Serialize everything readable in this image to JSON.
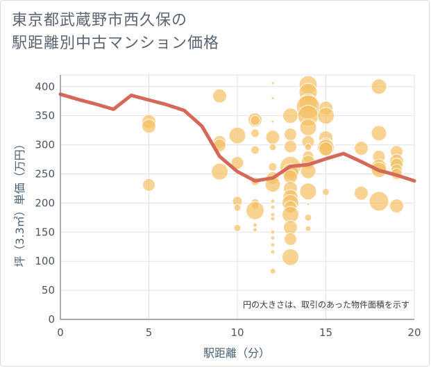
{
  "title_line1": "東京都武蔵野市西久保の",
  "title_line2": "駅距離別中古マンション価格",
  "chart_data": {
    "type": "scatter",
    "title": "東京都武蔵野市西久保の駅距離別中古マンション価格",
    "xlabel": "駅距離（分）",
    "ylabel": "坪（3.3㎡）単価（万円）",
    "xlim": [
      0,
      20
    ],
    "ylim": [
      0,
      420
    ],
    "xticks": [
      0,
      5,
      10,
      15,
      20
    ],
    "yticks": [
      0,
      50,
      100,
      150,
      200,
      250,
      300,
      350,
      400
    ],
    "grid": true,
    "note": "円の大きさは、取引のあった物件面積を示す",
    "bubble_color": "#f5bf62",
    "line_color": "#d4695a",
    "points": [
      {
        "x": 5,
        "y": 340,
        "s": 10
      },
      {
        "x": 5,
        "y": 332,
        "s": 10
      },
      {
        "x": 5,
        "y": 231,
        "s": 9
      },
      {
        "x": 9,
        "y": 384,
        "s": 10
      },
      {
        "x": 9,
        "y": 305,
        "s": 9
      },
      {
        "x": 9,
        "y": 299,
        "s": 9
      },
      {
        "x": 9,
        "y": 254,
        "s": 12
      },
      {
        "x": 10,
        "y": 316,
        "s": 12
      },
      {
        "x": 10,
        "y": 269,
        "s": 9
      },
      {
        "x": 10,
        "y": 203,
        "s": 7
      },
      {
        "x": 10,
        "y": 192,
        "s": 5
      },
      {
        "x": 10,
        "y": 157,
        "s": 5
      },
      {
        "x": 11,
        "y": 343,
        "s": 10
      },
      {
        "x": 11,
        "y": 342,
        "s": 7
      },
      {
        "x": 11,
        "y": 320,
        "s": 6
      },
      {
        "x": 11,
        "y": 291,
        "s": 6
      },
      {
        "x": 11,
        "y": 237,
        "s": 6
      },
      {
        "x": 11,
        "y": 200,
        "s": 6
      },
      {
        "x": 11,
        "y": 195,
        "s": 5
      },
      {
        "x": 11,
        "y": 187,
        "s": 13
      },
      {
        "x": 11,
        "y": 162,
        "s": 3
      },
      {
        "x": 11,
        "y": 154,
        "s": 3
      },
      {
        "x": 12,
        "y": 406,
        "s": 2
      },
      {
        "x": 12,
        "y": 380,
        "s": 2
      },
      {
        "x": 12,
        "y": 340,
        "s": 2
      },
      {
        "x": 12,
        "y": 313,
        "s": 10
      },
      {
        "x": 12,
        "y": 296,
        "s": 5
      },
      {
        "x": 12,
        "y": 262,
        "s": 6
      },
      {
        "x": 12,
        "y": 243,
        "s": 9
      },
      {
        "x": 12,
        "y": 232,
        "s": 11
      },
      {
        "x": 12,
        "y": 203,
        "s": 3
      },
      {
        "x": 12,
        "y": 193,
        "s": 3
      },
      {
        "x": 12,
        "y": 180,
        "s": 3
      },
      {
        "x": 12,
        "y": 173,
        "s": 3
      },
      {
        "x": 12,
        "y": 150,
        "s": 3
      },
      {
        "x": 12,
        "y": 140,
        "s": 3
      },
      {
        "x": 12,
        "y": 128,
        "s": 3
      },
      {
        "x": 12,
        "y": 116,
        "s": 3
      },
      {
        "x": 12,
        "y": 83,
        "s": 4
      },
      {
        "x": 13,
        "y": 350,
        "s": 11
      },
      {
        "x": 13,
        "y": 318,
        "s": 9
      },
      {
        "x": 13,
        "y": 297,
        "s": 9
      },
      {
        "x": 13,
        "y": 262,
        "s": 15
      },
      {
        "x": 13,
        "y": 253,
        "s": 12
      },
      {
        "x": 13,
        "y": 245,
        "s": 10
      },
      {
        "x": 13,
        "y": 225,
        "s": 10
      },
      {
        "x": 13,
        "y": 210,
        "s": 11
      },
      {
        "x": 13,
        "y": 200,
        "s": 12
      },
      {
        "x": 13,
        "y": 193,
        "s": 9
      },
      {
        "x": 13,
        "y": 180,
        "s": 12
      },
      {
        "x": 13,
        "y": 158,
        "s": 10
      },
      {
        "x": 13,
        "y": 138,
        "s": 9
      },
      {
        "x": 13,
        "y": 107,
        "s": 12
      },
      {
        "x": 14,
        "y": 403,
        "s": 13
      },
      {
        "x": 14,
        "y": 390,
        "s": 13
      },
      {
        "x": 14,
        "y": 372,
        "s": 13
      },
      {
        "x": 14,
        "y": 365,
        "s": 17
      },
      {
        "x": 14,
        "y": 350,
        "s": 15
      },
      {
        "x": 14,
        "y": 330,
        "s": 12
      },
      {
        "x": 14,
        "y": 305,
        "s": 9
      },
      {
        "x": 14,
        "y": 296,
        "s": 5
      },
      {
        "x": 14,
        "y": 280,
        "s": 8
      },
      {
        "x": 14,
        "y": 270,
        "s": 10
      },
      {
        "x": 14,
        "y": 255,
        "s": 11
      },
      {
        "x": 14,
        "y": 220,
        "s": 12
      },
      {
        "x": 14,
        "y": 198,
        "s": 2
      },
      {
        "x": 14,
        "y": 175,
        "s": 5
      },
      {
        "x": 14,
        "y": 156,
        "s": 4
      },
      {
        "x": 15,
        "y": 363,
        "s": 10
      },
      {
        "x": 15,
        "y": 350,
        "s": 12
      },
      {
        "x": 15,
        "y": 312,
        "s": 10
      },
      {
        "x": 15,
        "y": 300,
        "s": 10
      },
      {
        "x": 15,
        "y": 295,
        "s": 12
      },
      {
        "x": 15,
        "y": 293,
        "s": 10
      },
      {
        "x": 15,
        "y": 219,
        "s": 5
      },
      {
        "x": 17,
        "y": 294,
        "s": 10
      },
      {
        "x": 17,
        "y": 217,
        "s": 10
      },
      {
        "x": 18,
        "y": 400,
        "s": 11
      },
      {
        "x": 18,
        "y": 320,
        "s": 11
      },
      {
        "x": 18,
        "y": 280,
        "s": 9
      },
      {
        "x": 18,
        "y": 262,
        "s": 11
      },
      {
        "x": 18,
        "y": 257,
        "s": 11
      },
      {
        "x": 18,
        "y": 203,
        "s": 14
      },
      {
        "x": 19,
        "y": 288,
        "s": 9
      },
      {
        "x": 19,
        "y": 272,
        "s": 10
      },
      {
        "x": 19,
        "y": 266,
        "s": 9
      },
      {
        "x": 19,
        "y": 257,
        "s": 8
      },
      {
        "x": 19,
        "y": 250,
        "s": 8
      },
      {
        "x": 19,
        "y": 195,
        "s": 10
      }
    ],
    "trend": [
      {
        "x": 0,
        "y": 387
      },
      {
        "x": 1,
        "y": 378
      },
      {
        "x": 2,
        "y": 370
      },
      {
        "x": 3,
        "y": 361
      },
      {
        "x": 4,
        "y": 385
      },
      {
        "x": 5,
        "y": 377
      },
      {
        "x": 6,
        "y": 369
      },
      {
        "x": 7,
        "y": 359
      },
      {
        "x": 8,
        "y": 332
      },
      {
        "x": 9,
        "y": 280
      },
      {
        "x": 10,
        "y": 254
      },
      {
        "x": 11,
        "y": 238
      },
      {
        "x": 12,
        "y": 243
      },
      {
        "x": 13,
        "y": 263
      },
      {
        "x": 14,
        "y": 266
      },
      {
        "x": 15,
        "y": 276
      },
      {
        "x": 16,
        "y": 285
      },
      {
        "x": 17,
        "y": 271
      },
      {
        "x": 18,
        "y": 256
      },
      {
        "x": 19,
        "y": 248
      },
      {
        "x": 20,
        "y": 238
      }
    ]
  }
}
